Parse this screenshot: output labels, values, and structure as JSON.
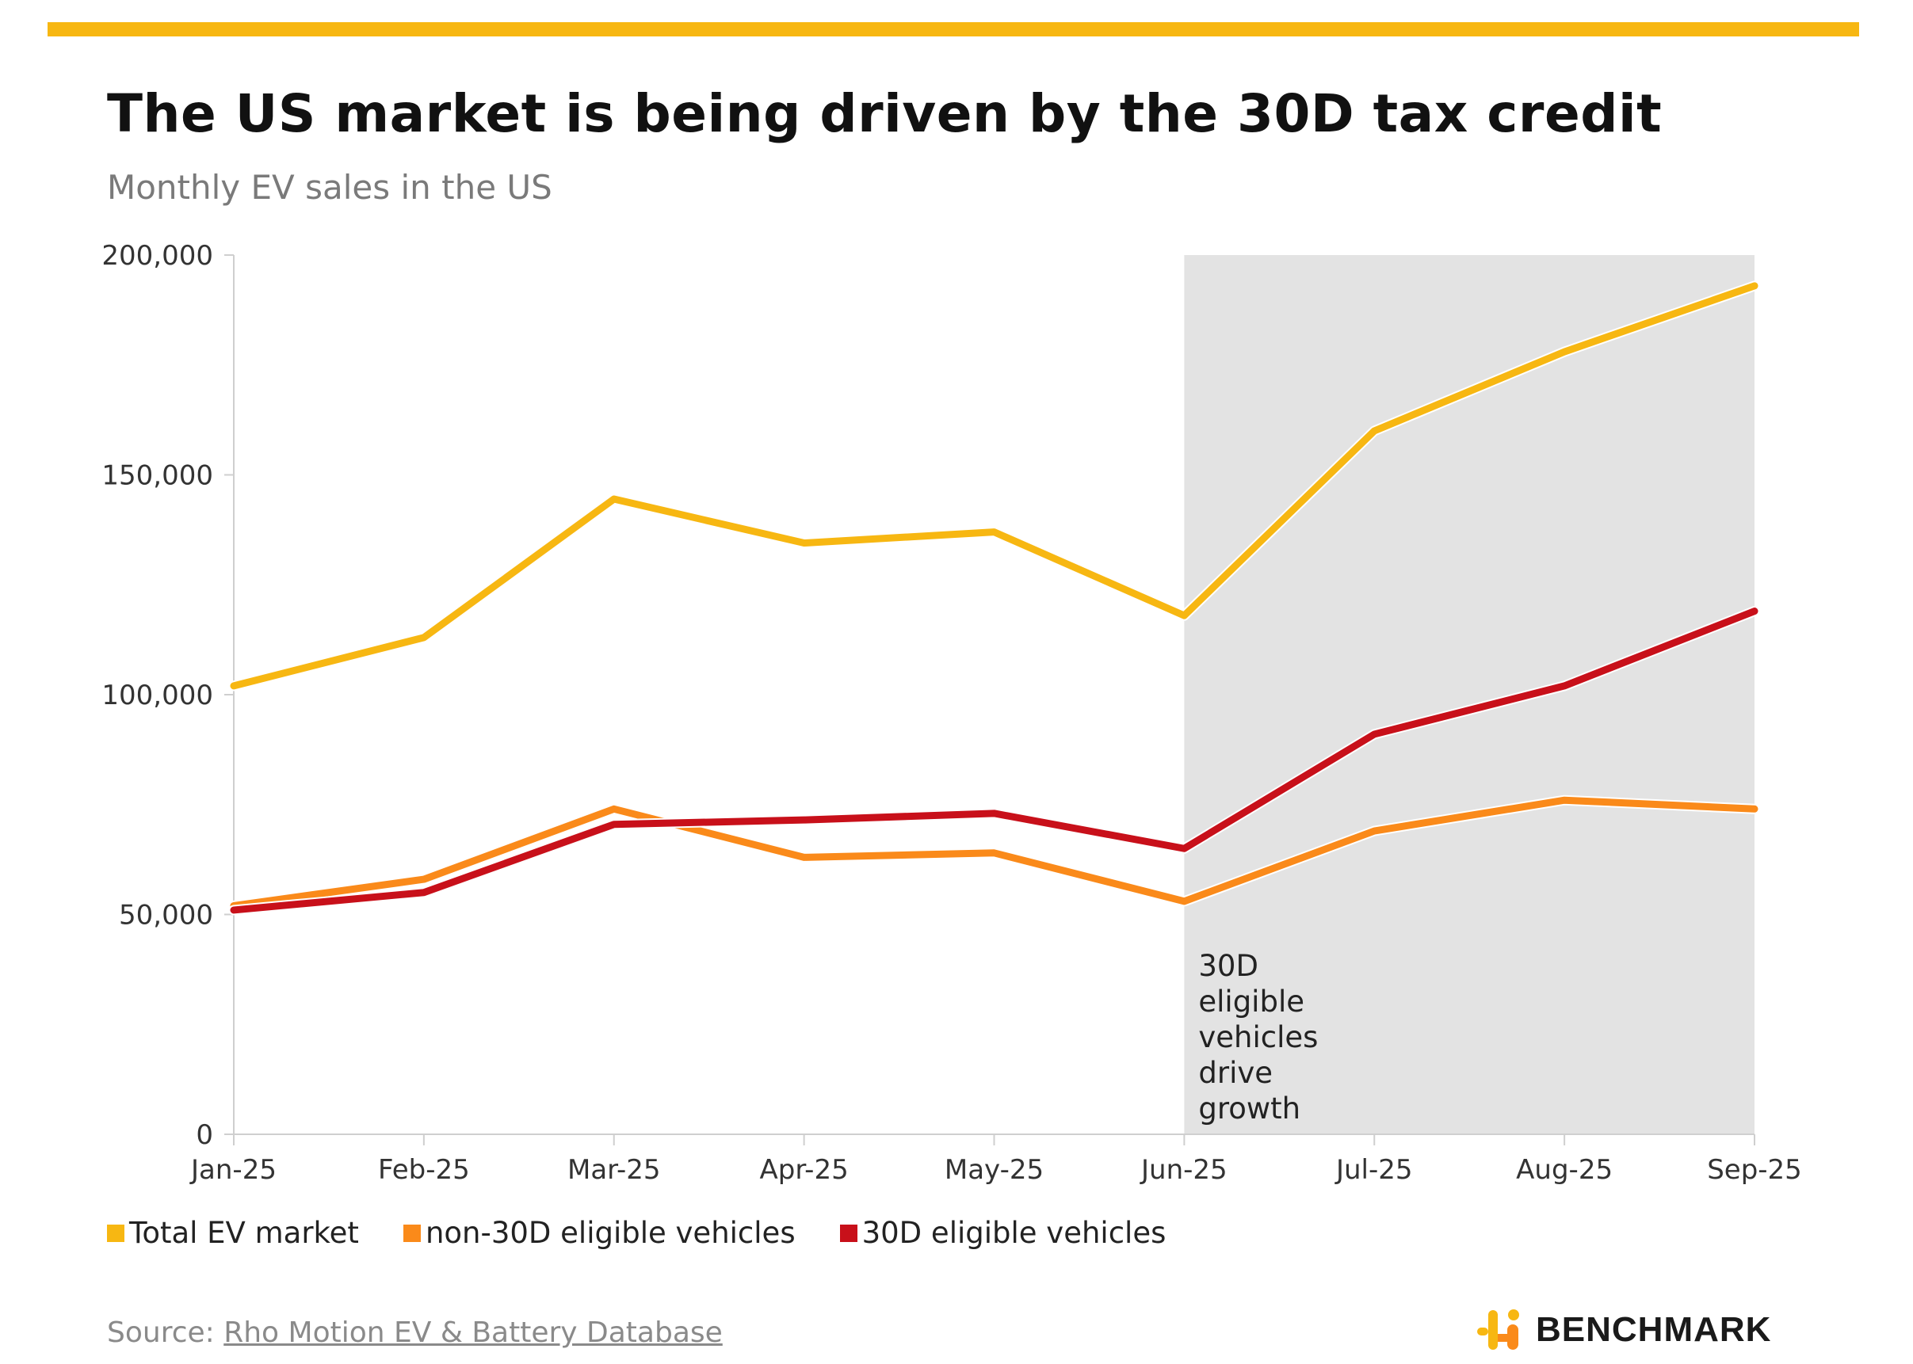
{
  "header": {
    "title": "The US market is being driven by the 30D tax credit",
    "subtitle": "Monthly EV sales in the US"
  },
  "colors": {
    "top_bar": "#F7B712",
    "total": "#F7B712",
    "non30d": "#FA8A1A",
    "eligible30d": "#C8101A",
    "shade": "#E3E3E3",
    "axis": "#CFCFCF"
  },
  "legend": {
    "total": "Total EV market",
    "non30d": "non-30D eligible vehicles",
    "eligible30d": "30D eligible vehicles"
  },
  "footer": {
    "source_prefix": "Source: ",
    "source_link": "Rho Motion EV & Battery Database",
    "brand": "BENCHMARK",
    "brand_icon": "benchmark-logo-icon"
  },
  "chart_data": {
    "type": "line",
    "categories": [
      "Jan-25",
      "Feb-25",
      "Mar-25",
      "Apr-25",
      "May-25",
      "Jun-25",
      "Jul-25",
      "Aug-25",
      "Sep-25"
    ],
    "ylim": [
      0,
      200000
    ],
    "yticks": [
      0,
      50000,
      100000,
      150000,
      200000
    ],
    "ytick_labels": [
      "0",
      "50,000",
      "100,000",
      "150,000",
      "200,000"
    ],
    "grid": false,
    "legend_position": "bottom-left",
    "series": [
      {
        "name": "Total EV market",
        "color": "#F7B712",
        "values": [
          102000,
          113000,
          144500,
          134500,
          137000,
          118000,
          160000,
          178000,
          193000
        ]
      },
      {
        "name": "non-30D eligible vehicles",
        "color": "#FA8A1A",
        "values": [
          52000,
          58000,
          74000,
          63000,
          64000,
          53000,
          69000,
          76000,
          74000
        ]
      },
      {
        "name": "30D eligible vehicles",
        "color": "#C8101A",
        "values": [
          51000,
          55000,
          70500,
          71500,
          73000,
          65000,
          91000,
          102000,
          119000
        ]
      }
    ],
    "shaded_region": {
      "from": "Jun-25",
      "to": "Sep-25",
      "annotation": [
        "30D",
        "eligible",
        "vehicles",
        "drive",
        "growth"
      ]
    }
  }
}
